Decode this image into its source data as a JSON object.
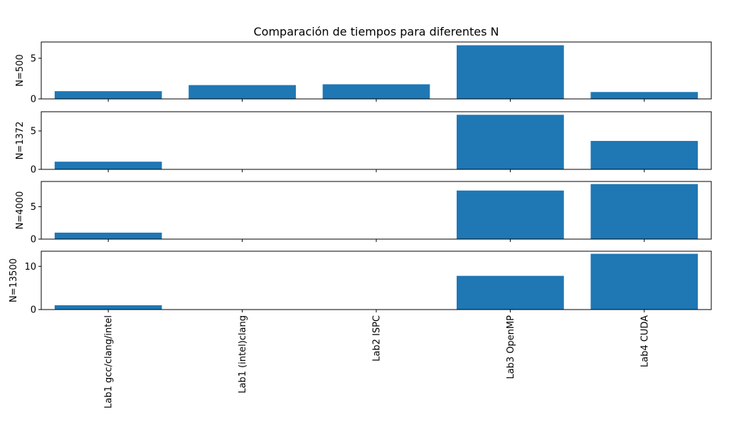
{
  "chart_data": {
    "type": "bar",
    "title": "Comparación de tiempos para diferentes N",
    "categories": [
      "Lab1 gcc/clang/intel",
      "Lab1 (intel)clang",
      "Lab2 ISPC",
      "Lab3 OpenMP",
      "Lab4 CUDA"
    ],
    "bar_color": "#1f77b4",
    "subplots": [
      {
        "ylabel": "N=500",
        "values": [
          0.95,
          1.7,
          1.8,
          6.6,
          0.85
        ],
        "ylim": [
          0,
          7.0
        ],
        "yticks": [
          0,
          5
        ]
      },
      {
        "ylabel": "N=1372",
        "values": [
          1.0,
          0,
          0,
          7.1,
          3.7
        ],
        "ylim": [
          0,
          7.5
        ],
        "yticks": [
          0,
          5
        ]
      },
      {
        "ylabel": "N=4000",
        "values": [
          1.0,
          0,
          0,
          7.5,
          8.5
        ],
        "ylim": [
          0,
          8.9
        ],
        "yticks": [
          0,
          5
        ]
      },
      {
        "ylabel": "N=13500",
        "values": [
          1.0,
          0,
          0,
          7.8,
          12.9
        ],
        "ylim": [
          0,
          13.5
        ],
        "yticks": [
          0,
          10
        ]
      }
    ]
  }
}
